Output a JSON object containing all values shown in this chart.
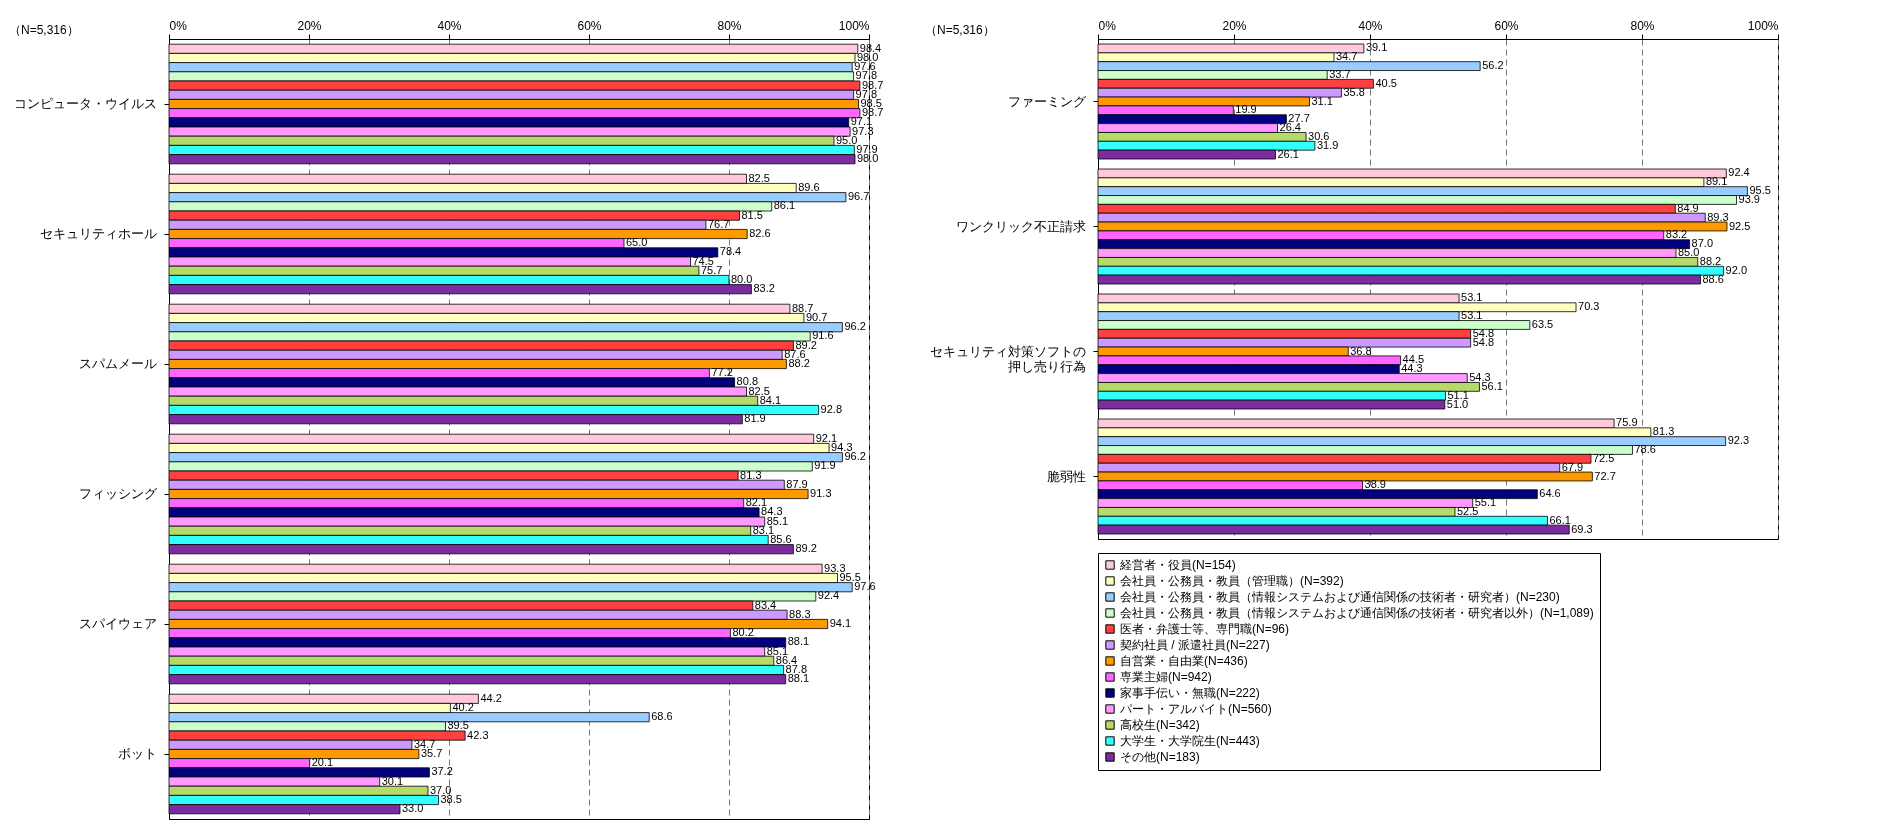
{
  "chart_data": [
    {
      "type": "bar",
      "orientation": "horizontal",
      "annotations": [
        "（N=5,316）"
      ],
      "categories": [
        "コンピュータ・ウイルス",
        "セキュリティホール",
        "スパムメール",
        "フィッシング",
        "スパイウェア",
        "ボット"
      ],
      "xlim": [
        0,
        100
      ],
      "xticks": [
        {
          "value": 0,
          "label": "0%"
        },
        {
          "value": 20,
          "label": "20%"
        },
        {
          "value": 40,
          "label": "40%"
        },
        {
          "value": 60,
          "label": "60%"
        },
        {
          "value": 80,
          "label": "80%"
        },
        {
          "value": 100,
          "label": "100%"
        }
      ],
      "grid": "x",
      "series": [
        {
          "color": "#ffc8dc",
          "values": [
            98.4,
            82.5,
            88.7,
            92.1,
            93.3,
            44.2
          ],
          "value_labels": [
            "98.4",
            "82.5",
            "88.7",
            "92.1",
            "93.3",
            "44.2"
          ]
        },
        {
          "color": "#ffffc0",
          "values": [
            98.0,
            89.6,
            90.7,
            94.3,
            95.5,
            40.2
          ],
          "value_labels": [
            "98.0",
            "89.6",
            "90.7",
            "94.3",
            "95.5",
            "40.2"
          ]
        },
        {
          "color": "#99ccff",
          "values": [
            97.6,
            96.7,
            96.2,
            96.2,
            97.6,
            68.6
          ],
          "value_labels": [
            "97.6",
            "96.7",
            "96.2",
            "96.2",
            "97.6",
            "68.6"
          ]
        },
        {
          "color": "#ccffcc",
          "values": [
            97.8,
            86.1,
            91.6,
            91.9,
            92.4,
            39.5
          ],
          "value_labels": [
            "97.8",
            "86.1",
            "91.6",
            "91.9",
            "92.4",
            "39.5"
          ]
        },
        {
          "color": "#ff4040",
          "values": [
            98.7,
            81.5,
            89.2,
            81.3,
            83.4,
            42.3
          ],
          "value_labels": [
            "98.7",
            "81.5",
            "89.2",
            "81.3",
            "83.4",
            "42.3"
          ]
        },
        {
          "color": "#cc99ff",
          "values": [
            97.8,
            76.7,
            87.6,
            87.9,
            88.3,
            34.7
          ],
          "value_labels": [
            "97.8",
            "76.7",
            "87.6",
            "87.9",
            "88.3",
            "34.7"
          ]
        },
        {
          "color": "#ff9900",
          "values": [
            98.5,
            82.6,
            88.2,
            91.3,
            94.1,
            35.7
          ],
          "value_labels": [
            "98.5",
            "82.6",
            "88.2",
            "91.3",
            "94.1",
            "35.7"
          ]
        },
        {
          "color": "#ff66ff",
          "values": [
            98.7,
            65.0,
            77.2,
            82.1,
            80.2,
            20.1
          ],
          "value_labels": [
            "98.7",
            "65.0",
            "77.2",
            "82.1",
            "80.2",
            "20.1"
          ]
        },
        {
          "color": "#000080",
          "values": [
            97.1,
            78.4,
            80.8,
            84.3,
            88.1,
            37.2
          ],
          "value_labels": [
            "97.1",
            "78.4",
            "80.8",
            "84.3",
            "88.1",
            "37.2"
          ]
        },
        {
          "color": "#ff99ff",
          "values": [
            97.3,
            74.5,
            82.5,
            85.1,
            85.1,
            30.1
          ],
          "value_labels": [
            "97.3",
            "74.5",
            "82.5",
            "85.1",
            "85.1",
            "30.1"
          ]
        },
        {
          "color": "#b5d96a",
          "values": [
            95.0,
            75.7,
            84.1,
            83.1,
            86.4,
            37.0
          ],
          "value_labels": [
            "95.0",
            "75.7",
            "84.1",
            "83.1",
            "86.4",
            "37.0"
          ]
        },
        {
          "color": "#33ffff",
          "values": [
            97.9,
            80.0,
            92.8,
            85.6,
            87.8,
            38.5
          ],
          "value_labels": [
            "97.9",
            "80.0",
            "92.8",
            "85.6",
            "87.8",
            "38.5"
          ]
        },
        {
          "color": "#7a2ca0",
          "values": [
            98.0,
            83.2,
            81.9,
            89.2,
            88.1,
            33.0
          ],
          "value_labels": [
            "98.0",
            "83.2",
            "81.9",
            "89.2",
            "88.1",
            "33.0"
          ]
        }
      ]
    },
    {
      "type": "bar",
      "orientation": "horizontal",
      "annotations": [
        "（N=5,316）"
      ],
      "categories": [
        "ファーミング",
        "ワンクリック不正請求",
        "セキュリティ対策ソフトの押し売り行為",
        "脆弱性"
      ],
      "xlim": [
        0,
        100
      ],
      "xticks": [
        {
          "value": 0,
          "label": "0%"
        },
        {
          "value": 20,
          "label": "20%"
        },
        {
          "value": 40,
          "label": "40%"
        },
        {
          "value": 60,
          "label": "60%"
        },
        {
          "value": 80,
          "label": "80%"
        },
        {
          "value": 100,
          "label": "100%"
        }
      ],
      "grid": "x",
      "legend": "bottom",
      "series": [
        {
          "name": "経営者・役員(N=154)",
          "color": "#ffc8dc",
          "values": [
            39.1,
            92.4,
            53.1,
            75.9
          ],
          "value_labels": [
            "39.1",
            "92.4",
            "53.1",
            "75.9"
          ]
        },
        {
          "name": "会社員・公務員・教員（管理職）(N=392)",
          "color": "#ffffc0",
          "values": [
            34.7,
            89.1,
            70.3,
            81.3
          ],
          "value_labels": [
            "34.7",
            "89.1",
            "70.3",
            "81.3"
          ]
        },
        {
          "name": "会社員・公務員・教員（情報システムおよび通信関係の技術者・研究者）(N=230)",
          "color": "#99ccff",
          "values": [
            56.2,
            95.5,
            53.1,
            92.3
          ],
          "value_labels": [
            "56.2",
            "95.5",
            "53.1",
            "92.3"
          ]
        },
        {
          "name": "会社員・公務員・教員（情報システムおよび通信関係の技術者・研究者以外）(N=1,089)",
          "color": "#ccffcc",
          "values": [
            33.7,
            93.9,
            63.5,
            78.6
          ],
          "value_labels": [
            "33.7",
            "93.9",
            "63.5",
            "78.6"
          ]
        },
        {
          "name": "医者・弁護士等、専門職(N=96)",
          "color": "#ff4040",
          "values": [
            40.5,
            84.9,
            54.8,
            72.5
          ],
          "value_labels": [
            "40.5",
            "84.9",
            "54.8",
            "72.5"
          ]
        },
        {
          "name": "契約社員 / 派遣社員(N=227)",
          "color": "#cc99ff",
          "values": [
            35.8,
            89.3,
            54.8,
            67.9
          ],
          "value_labels": [
            "35.8",
            "89.3",
            "54.8",
            "67.9"
          ]
        },
        {
          "name": "自営業・自由業(N=436)",
          "color": "#ff9900",
          "values": [
            31.1,
            92.5,
            36.8,
            72.7
          ],
          "value_labels": [
            "31.1",
            "92.5",
            "36.8",
            "72.7"
          ]
        },
        {
          "name": "専業主婦(N=942)",
          "color": "#ff66ff",
          "values": [
            19.9,
            83.2,
            44.5,
            38.9
          ],
          "value_labels": [
            "19.9",
            "83.2",
            "44.5",
            "38.9"
          ]
        },
        {
          "name": "家事手伝い・無職(N=222)",
          "color": "#000080",
          "values": [
            27.7,
            87.0,
            44.3,
            64.6
          ],
          "value_labels": [
            "27.7",
            "87.0",
            "44.3",
            "64.6"
          ]
        },
        {
          "name": "パート・アルバイト(N=560)",
          "color": "#ff99ff",
          "values": [
            26.4,
            85.0,
            54.3,
            55.1
          ],
          "value_labels": [
            "26.4",
            "85.0",
            "54.3",
            "55.1"
          ]
        },
        {
          "name": "高校生(N=342)",
          "color": "#b5d96a",
          "values": [
            30.6,
            88.2,
            56.1,
            52.5
          ],
          "value_labels": [
            "30.6",
            "88.2",
            "56.1",
            "52.5"
          ]
        },
        {
          "name": "大学生・大学院生(N=443)",
          "color": "#33ffff",
          "values": [
            31.9,
            92.0,
            51.1,
            66.1
          ],
          "value_labels": [
            "31.9",
            "92.0",
            "51.1",
            "66.1"
          ]
        },
        {
          "name": "その他(N=183)",
          "color": "#7a2ca0",
          "values": [
            26.1,
            88.6,
            51.0,
            69.3
          ],
          "value_labels": [
            "26.1",
            "88.6",
            "51.0",
            "69.3"
          ]
        }
      ]
    }
  ]
}
